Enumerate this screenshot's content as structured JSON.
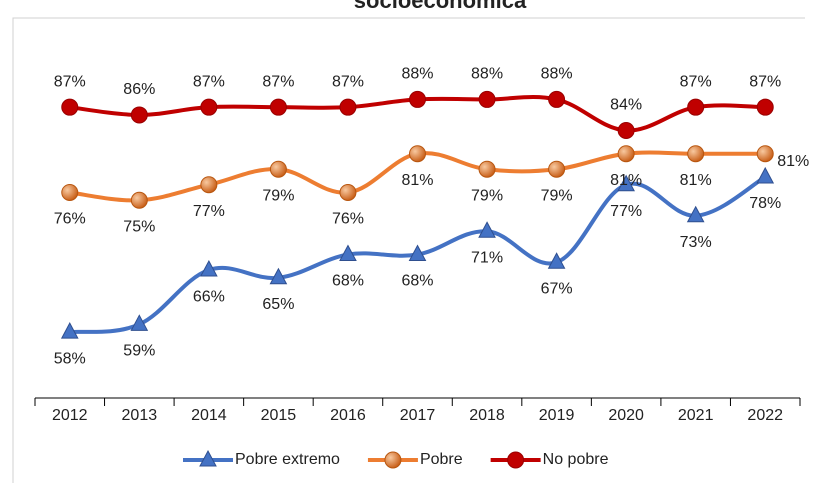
{
  "chart_data": {
    "type": "line",
    "title": "socioeconómica",
    "categories": [
      "2012",
      "2013",
      "2014",
      "2015",
      "2016",
      "2017",
      "2018",
      "2019",
      "2020",
      "2021",
      "2022"
    ],
    "series": [
      {
        "name": "Pobre extremo",
        "color": "#4472c4",
        "marker": "triangle",
        "values": [
          58,
          59,
          66,
          65,
          68,
          68,
          71,
          67,
          77,
          73,
          78
        ],
        "value_labels": [
          "58%",
          "59%",
          "66%",
          "65%",
          "68%",
          "68%",
          "71%",
          "67%",
          "77%",
          "73%",
          "78%"
        ]
      },
      {
        "name": "Pobre",
        "color": "#ed7d31",
        "marker": "circle",
        "values": [
          76,
          75,
          77,
          79,
          76,
          81,
          79,
          79,
          81,
          81,
          81
        ],
        "value_labels": [
          "76%",
          "75%",
          "77%",
          "79%",
          "76%",
          "81%",
          "79%",
          "79%",
          "81%",
          "81%",
          "81%"
        ]
      },
      {
        "name": "No pobre",
        "color": "#c00000",
        "marker": "circle",
        "values": [
          87,
          86,
          87,
          87,
          87,
          88,
          88,
          88,
          84,
          87,
          87
        ],
        "value_labels": [
          "87%",
          "86%",
          "87%",
          "87%",
          "87%",
          "88%",
          "88%",
          "88%",
          "84%",
          "87%",
          "87%"
        ]
      }
    ],
    "ylim": [
      49.5,
      98.5
    ],
    "legend": "bottom"
  }
}
